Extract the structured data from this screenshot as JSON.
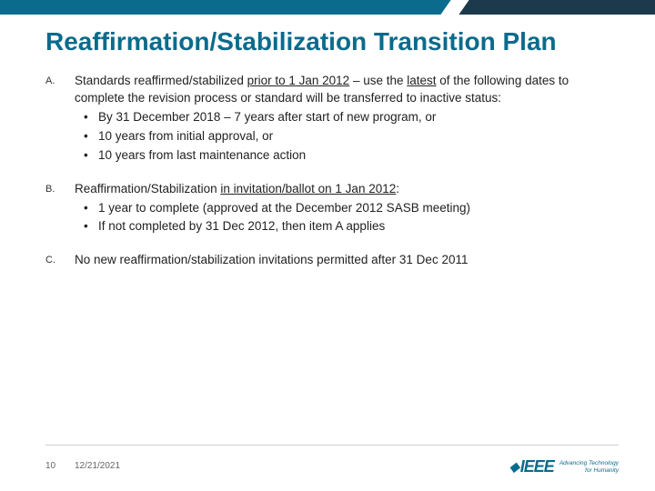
{
  "banner": {
    "left_color": "#0a6b8c",
    "right_color": "#1d3a4c"
  },
  "title": "Reaffirmation/Stabilization Transition Plan",
  "items": [
    {
      "marker": "A.",
      "lead_pre": "Standards reaffirmed/stabilized ",
      "lead_u": "prior to 1 Jan 2012",
      "lead_post": " – use the ",
      "lead_u2": "latest",
      "lead_tail": " of the following dates to complete the revision process or standard will be transferred to inactive status:",
      "subs": [
        "By 31 December 2018 – 7 years after start of new program, or",
        "10 years from initial approval, or",
        "10 years from last maintenance action"
      ]
    },
    {
      "marker": "B.",
      "lead_pre": "Reaffirmation/Stabilization ",
      "lead_u": "in invitation/ballot on 1 Jan 2012",
      "lead_post": ":",
      "lead_u2": "",
      "lead_tail": "",
      "subs": [
        "1 year to complete (approved at the December 2012 SASB meeting)",
        "If not completed by 31 Dec 2012, then item A applies"
      ]
    },
    {
      "marker": "C.",
      "lead_pre": "No new reaffirmation/stabilization invitations permitted after 31 Dec 2011",
      "lead_u": "",
      "lead_post": "",
      "lead_u2": "",
      "lead_tail": "",
      "subs": []
    }
  ],
  "footer": {
    "page": "10",
    "date": "12/21/2021"
  },
  "logo": {
    "text": "IEEE",
    "tagline1": "Advancing Technology",
    "tagline2": "for Humanity"
  }
}
